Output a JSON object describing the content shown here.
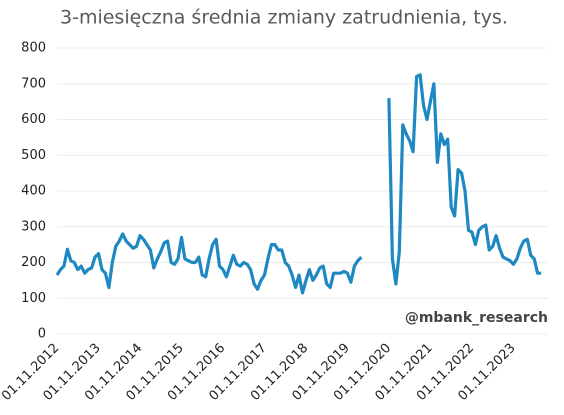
{
  "chart_data": {
    "type": "line",
    "title": "3-miesięczna średnia zmiany zatrudnienia, tys.",
    "annotation": "@mbank_research",
    "color": "#1e88c2",
    "grid": true,
    "ylim": [
      0,
      800
    ],
    "yticks": [
      0,
      100,
      200,
      300,
      400,
      500,
      600,
      700,
      800
    ],
    "categories": [
      "01.11.2012",
      null,
      null,
      null,
      null,
      null,
      null,
      null,
      null,
      null,
      null,
      null,
      "01.11.2013",
      null,
      null,
      null,
      null,
      null,
      null,
      null,
      null,
      null,
      null,
      null,
      "01.11.2014",
      null,
      null,
      null,
      null,
      null,
      null,
      null,
      null,
      null,
      null,
      null,
      "01.11.2015",
      null,
      null,
      null,
      null,
      null,
      null,
      null,
      null,
      null,
      null,
      null,
      "01.11.2016",
      null,
      null,
      null,
      null,
      null,
      null,
      null,
      null,
      null,
      null,
      null,
      "01.11.2017",
      null,
      null,
      null,
      null,
      null,
      null,
      null,
      null,
      null,
      null,
      null,
      "01.11.2018",
      null,
      null,
      null,
      null,
      null,
      null,
      null,
      null,
      null,
      null,
      null,
      "01.11.2019",
      null,
      null,
      null,
      null,
      null,
      null,
      null,
      null,
      null,
      null,
      null,
      "01.11.2020",
      null,
      null,
      null,
      null,
      null,
      null,
      null,
      null,
      null,
      null,
      null,
      "01.11.2021",
      null,
      null,
      null,
      null,
      null,
      null,
      null,
      null,
      null,
      null,
      null,
      "01.11.2022",
      null,
      null,
      null,
      null,
      null,
      null,
      null,
      null,
      null,
      null,
      null,
      "01.11.2023",
      null,
      null,
      null,
      null,
      null,
      null,
      null,
      null
    ],
    "values": [
      165,
      180,
      190,
      237,
      205,
      200,
      180,
      190,
      170,
      180,
      185,
      215,
      225,
      180,
      170,
      130,
      200,
      245,
      260,
      280,
      260,
      250,
      240,
      245,
      275,
      265,
      250,
      235,
      185,
      210,
      230,
      255,
      260,
      200,
      195,
      210,
      270,
      210,
      205,
      200,
      200,
      215,
      165,
      160,
      210,
      250,
      265,
      190,
      180,
      160,
      190,
      220,
      195,
      190,
      200,
      195,
      180,
      140,
      125,
      150,
      165,
      210,
      250,
      250,
      235,
      235,
      200,
      190,
      165,
      130,
      165,
      115,
      150,
      180,
      150,
      165,
      185,
      190,
      140,
      130,
      170,
      170,
      170,
      175,
      170,
      145,
      190,
      205,
      215,
      null,
      null,
      null,
      null,
      null,
      null,
      null,
      660,
      210,
      140,
      230,
      585,
      560,
      540,
      510,
      720,
      725,
      640,
      600,
      650,
      700,
      480,
      560,
      530,
      545,
      355,
      330,
      460,
      450,
      400,
      290,
      285,
      250,
      290,
      300,
      305,
      235,
      245,
      275,
      240,
      215,
      210,
      205,
      195,
      210,
      240,
      260,
      265,
      220,
      210,
      170,
      170
    ]
  }
}
